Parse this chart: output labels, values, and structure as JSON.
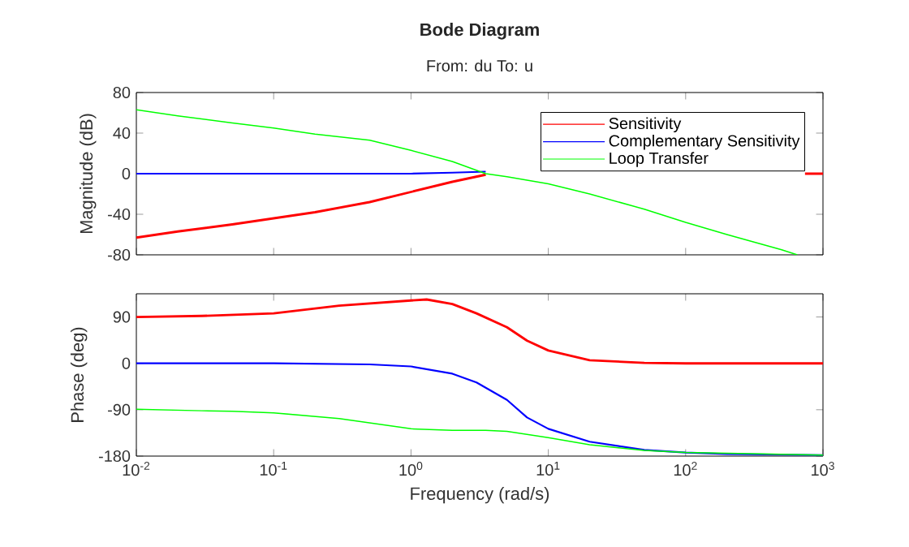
{
  "chart_data": [
    {
      "type": "line",
      "title": "Bode Diagram",
      "subtitle": "From: du  To: u",
      "ylabel": "Magnitude (dB)",
      "log": "x",
      "legend": "top right",
      "tick_labels": "y",
      "xlim": [
        0.01,
        1000
      ],
      "xticks": [
        0.01,
        0.1,
        1,
        10,
        100,
        1000
      ],
      "ylim": [
        -80,
        80
      ],
      "yticks": [
        -80,
        -40,
        0,
        40,
        80
      ],
      "series": [
        {
          "name": "Sensitivity",
          "color": "#ff0000",
          "x": [
            0.01,
            0.02,
            0.05,
            0.1,
            0.2,
            0.5,
            1,
            2,
            3.5,
            100,
            740,
            1000
          ],
          "values": [
            -63,
            -57,
            -50,
            -44,
            -38,
            -28,
            -18,
            -8,
            -1,
            null,
            0,
            0
          ]
        },
        {
          "name": "Complementary Sensitivity",
          "color": "#0000ff",
          "x": [
            0.01,
            0.1,
            0.5,
            1,
            2,
            3.5
          ],
          "values": [
            0,
            0,
            0,
            0,
            1,
            2
          ]
        },
        {
          "name": "Loop Transfer",
          "color": "#00ff00",
          "x": [
            0.01,
            0.02,
            0.05,
            0.1,
            0.2,
            0.5,
            1,
            2,
            3.5,
            5,
            10,
            20,
            50,
            100,
            200,
            500,
            650
          ],
          "values": [
            63,
            57,
            50,
            45,
            39,
            33,
            23,
            12,
            0,
            -3,
            -10,
            -20,
            -35,
            -48,
            -60,
            -75,
            -80
          ]
        }
      ]
    },
    {
      "type": "line",
      "xlabel": "Frequency (rad/s)",
      "ylabel": "Phase (deg)",
      "log": "x",
      "xlim": [
        0.01,
        1000
      ],
      "xticks": [
        {
          "value": 0.01,
          "label": "10$^{-2}$"
        },
        {
          "value": 0.1,
          "label": "10$^{-1}$"
        },
        {
          "value": 1,
          "label": "10$^{0}$"
        },
        {
          "value": 10,
          "label": "10$^{1}$"
        },
        {
          "value": 100,
          "label": "10$^{2}$"
        },
        {
          "value": 1000,
          "label": "10$^{3}$"
        }
      ],
      "ylim": [
        -180,
        135
      ],
      "yticks": [
        -180,
        -90,
        0,
        90
      ],
      "series": [
        {
          "color": "#ff0000",
          "x": [
            0.01,
            0.03,
            0.1,
            0.3,
            1,
            1.3,
            2,
            3,
            5,
            7,
            10,
            20,
            50,
            100,
            1000
          ],
          "values": [
            90,
            92,
            97,
            112,
            122,
            124,
            115,
            97,
            70,
            44,
            25,
            6,
            1,
            0,
            0
          ]
        },
        {
          "color": "#0000ff",
          "x": [
            0.01,
            0.1,
            0.5,
            1,
            2,
            3,
            5,
            7,
            10,
            20,
            50,
            100,
            200,
            1000
          ],
          "values": [
            0,
            0,
            -2,
            -6,
            -20,
            -37,
            -71,
            -105,
            -127,
            -152,
            -168,
            -173,
            -176,
            -178
          ]
        },
        {
          "color": "#00ff00",
          "x": [
            0.01,
            0.03,
            0.05,
            0.1,
            0.3,
            1,
            2,
            3.5,
            5,
            10,
            20,
            50,
            100,
            1000
          ],
          "values": [
            -89,
            -92,
            -93,
            -96,
            -107,
            -127,
            -130,
            -130,
            -132,
            -144,
            -158,
            -169,
            -173,
            -178
          ]
        }
      ]
    }
  ]
}
